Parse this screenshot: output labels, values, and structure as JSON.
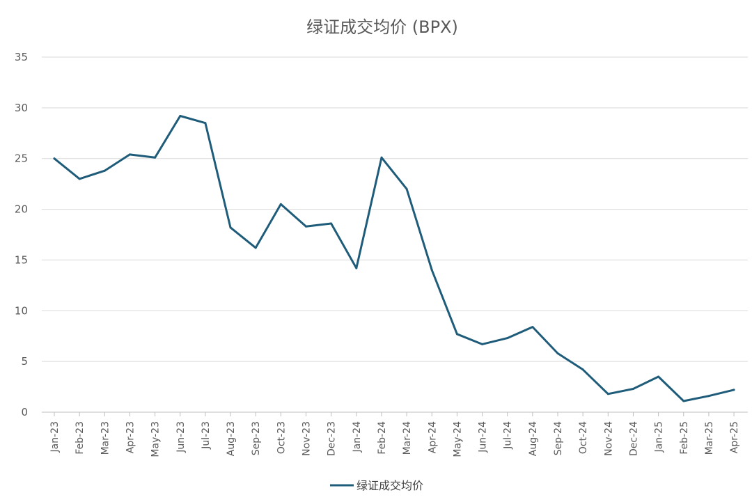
{
  "chart_data": {
    "type": "line",
    "title": "绿证成交均价 (BPX)",
    "xlabel": "",
    "ylabel": "",
    "ylim": [
      0,
      35
    ],
    "yticks": [
      0,
      5,
      10,
      15,
      20,
      25,
      30,
      35
    ],
    "grid": true,
    "legend_position": "bottom",
    "categories": [
      "Jan-23",
      "Feb-23",
      "Mar-23",
      "Apr-23",
      "May-23",
      "Jun-23",
      "Jul-23",
      "Aug-23",
      "Sep-23",
      "Oct-23",
      "Nov-23",
      "Dec-23",
      "Jan-24",
      "Feb-24",
      "Mar-24",
      "Apr-24",
      "May-24",
      "Jun-24",
      "Jul-24",
      "Aug-24",
      "Sep-24",
      "Oct-24",
      "Nov-24",
      "Dec-24",
      "Jan-25",
      "Feb-25",
      "Mar-25",
      "Apr-25"
    ],
    "series": [
      {
        "name": "绿证成交均价",
        "color": "#1f5c7a",
        "values": [
          25.0,
          23.0,
          23.8,
          25.4,
          25.1,
          29.2,
          28.5,
          18.2,
          16.2,
          20.5,
          18.3,
          18.6,
          14.2,
          25.1,
          22.0,
          14.0,
          7.7,
          6.7,
          7.3,
          8.4,
          5.8,
          4.2,
          1.8,
          2.3,
          3.5,
          1.1,
          1.6,
          2.2
        ]
      }
    ]
  }
}
